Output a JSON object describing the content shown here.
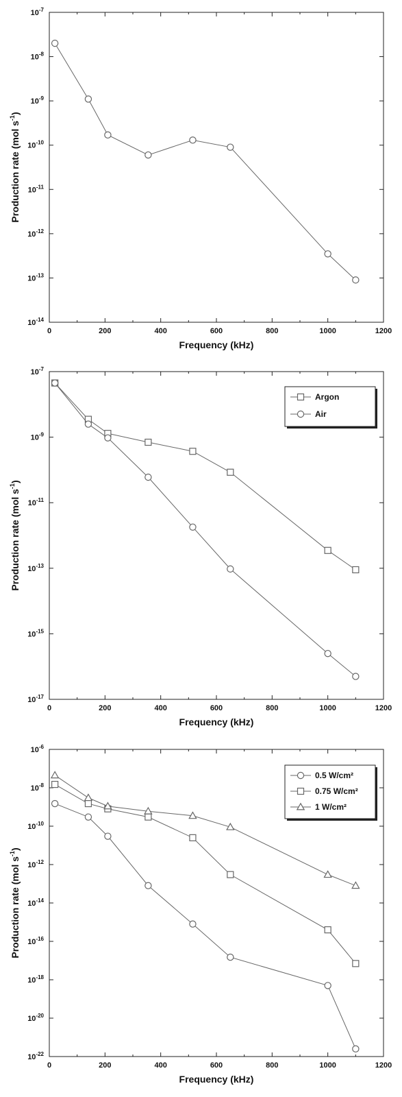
{
  "colors": {
    "line": "#666666",
    "axis": "#222222",
    "background": "#ffffff"
  },
  "chart_data": [
    {
      "type": "line",
      "xlabel": "Frequency (kHz)",
      "ylabel": "Production rate (mol s-1)",
      "ylabel_main": "Production rate (mol s",
      "ylabel_sup": "-1",
      "ylabel_end": ")",
      "yscale": "log",
      "xlim": [
        0,
        1200
      ],
      "ylim": [
        1e-14,
        1e-07
      ],
      "xticks": [
        0,
        200,
        400,
        600,
        800,
        1000,
        1200
      ],
      "yticks_exp": [
        -7,
        -8,
        -9,
        -10,
        -11,
        -12,
        -13,
        -14
      ],
      "grid": false,
      "legend": null,
      "series": [
        {
          "marker": "circle",
          "x": [
            20,
            140,
            210,
            355,
            515,
            650,
            1000,
            1100
          ],
          "y": [
            2e-08,
            1.1e-09,
            1.7e-10,
            6e-11,
            1.3e-10,
            9e-11,
            3.5e-13,
            9e-14
          ],
          "y_note": "values read from plot"
        }
      ]
    },
    {
      "type": "line",
      "xlabel": "Frequency (kHz)",
      "ylabel": "Production rate (mol s-1)",
      "ylabel_main": "Production rate (mol s",
      "ylabel_sup": "-1",
      "ylabel_end": ")",
      "yscale": "log",
      "xlim": [
        0,
        1200
      ],
      "ylim": [
        1e-17,
        1e-07
      ],
      "xticks": [
        0,
        200,
        400,
        600,
        800,
        1000,
        1200
      ],
      "yticks_exp": [
        -7,
        -9,
        -11,
        -13,
        -15,
        -17
      ],
      "grid": false,
      "legend": "top-right",
      "series": [
        {
          "name": "Argon",
          "marker": "square",
          "x": [
            20,
            140,
            210,
            355,
            515,
            650,
            1000,
            1100
          ],
          "y": [
            4.5e-08,
            3.5e-09,
            1.3e-09,
            7e-10,
            3.7e-10,
            8.5e-11,
            3.5e-13,
            9e-14
          ]
        },
        {
          "name": "Air",
          "marker": "circle",
          "x": [
            20,
            140,
            210,
            355,
            515,
            650,
            1000,
            1100
          ],
          "y": [
            4.5e-08,
            2.5e-09,
            9.5e-10,
            6e-11,
            1.8e-12,
            9.5e-14,
            2.5e-16,
            5e-17
          ]
        }
      ]
    },
    {
      "type": "line",
      "xlabel": "Frequency (kHz)",
      "ylabel": "Production rate (mol s-1)",
      "ylabel_main": "Production rate (mol s",
      "ylabel_sup": "-1",
      "ylabel_end": ")",
      "yscale": "log",
      "xlim": [
        0,
        1200
      ],
      "ylim": [
        1e-22,
        1e-06
      ],
      "xticks": [
        0,
        200,
        400,
        600,
        800,
        1000,
        1200
      ],
      "yticks_exp": [
        -6,
        -8,
        -10,
        -12,
        -14,
        -16,
        -18,
        -20,
        -22
      ],
      "grid": false,
      "legend": "top-right",
      "series": [
        {
          "name": "0.5 W/cm²",
          "marker": "circle",
          "x": [
            20,
            140,
            210,
            355,
            515,
            650,
            1000,
            1100
          ],
          "y": [
            1.5e-09,
            3e-10,
            3e-11,
            8e-14,
            8e-16,
            1.5e-17,
            5e-19,
            2.5e-22
          ]
        },
        {
          "name": "0.75 W/cm²",
          "marker": "square",
          "x": [
            20,
            140,
            210,
            355,
            515,
            650,
            1000,
            1100
          ],
          "y": [
            1.5e-08,
            1.5e-09,
            8e-10,
            3e-10,
            2.5e-11,
            3e-13,
            4e-16,
            7e-18
          ]
        },
        {
          "name": "1 W/cm²",
          "marker": "triangle",
          "x": [
            20,
            140,
            210,
            355,
            515,
            650,
            1000,
            1100
          ],
          "y": [
            4.5e-08,
            3e-09,
            1.1e-09,
            6e-10,
            3.5e-10,
            9e-11,
            3e-13,
            8e-14
          ]
        }
      ]
    }
  ]
}
